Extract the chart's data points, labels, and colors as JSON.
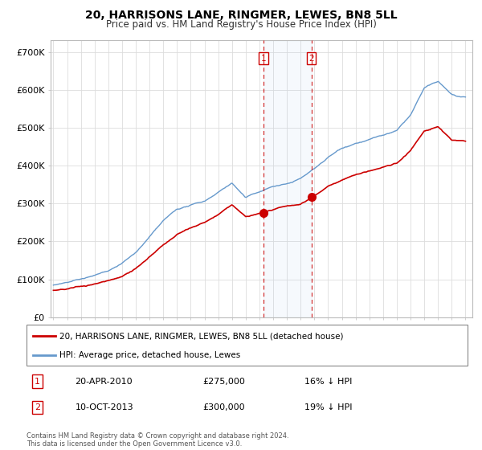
{
  "title": "20, HARRISONS LANE, RINGMER, LEWES, BN8 5LL",
  "subtitle": "Price paid vs. HM Land Registry's House Price Index (HPI)",
  "ylim": [
    0,
    730000
  ],
  "sale1_date": "20-APR-2010",
  "sale1_price": 275000,
  "sale1_label": "16% ↓ HPI",
  "sale2_date": "10-OCT-2013",
  "sale2_price": 300000,
  "sale2_label": "19% ↓ HPI",
  "sale1_x": 2010.3,
  "sale2_x": 2013.78,
  "red_color": "#cc0000",
  "blue_color": "#6699cc",
  "grid_color": "#dddddd",
  "legend_label_red": "20, HARRISONS LANE, RINGMER, LEWES, BN8 5LL (detached house)",
  "legend_label_blue": "HPI: Average price, detached house, Lewes",
  "footer": "Contains HM Land Registry data © Crown copyright and database right 2024.\nThis data is licensed under the Open Government Licence v3.0.",
  "hpi_keypoints": [
    [
      1995,
      95000
    ],
    [
      1996,
      99000
    ],
    [
      1997,
      107000
    ],
    [
      1998,
      115000
    ],
    [
      1999,
      128000
    ],
    [
      2000,
      148000
    ],
    [
      2001,
      175000
    ],
    [
      2002,
      215000
    ],
    [
      2003,
      255000
    ],
    [
      2004,
      285000
    ],
    [
      2005,
      295000
    ],
    [
      2006,
      305000
    ],
    [
      2007,
      330000
    ],
    [
      2008,
      355000
    ],
    [
      2009,
      315000
    ],
    [
      2010,
      330000
    ],
    [
      2011,
      345000
    ],
    [
      2012,
      350000
    ],
    [
      2013,
      365000
    ],
    [
      2014,
      390000
    ],
    [
      2015,
      420000
    ],
    [
      2016,
      445000
    ],
    [
      2017,
      460000
    ],
    [
      2018,
      470000
    ],
    [
      2019,
      480000
    ],
    [
      2020,
      490000
    ],
    [
      2021,
      530000
    ],
    [
      2022,
      600000
    ],
    [
      2023,
      615000
    ],
    [
      2024,
      580000
    ],
    [
      2025,
      570000
    ]
  ],
  "price_keypoints": [
    [
      1995,
      73000
    ],
    [
      1996,
      77000
    ],
    [
      1997,
      83000
    ],
    [
      1998,
      90000
    ],
    [
      1999,
      100000
    ],
    [
      2000,
      112000
    ],
    [
      2001,
      135000
    ],
    [
      2002,
      165000
    ],
    [
      2003,
      195000
    ],
    [
      2004,
      220000
    ],
    [
      2005,
      237000
    ],
    [
      2006,
      250000
    ],
    [
      2007,
      270000
    ],
    [
      2008,
      295000
    ],
    [
      2009,
      262000
    ],
    [
      2010,
      270000
    ],
    [
      2011,
      278000
    ],
    [
      2012,
      290000
    ],
    [
      2013,
      295000
    ],
    [
      2014,
      320000
    ],
    [
      2015,
      345000
    ],
    [
      2016,
      362000
    ],
    [
      2017,
      375000
    ],
    [
      2018,
      385000
    ],
    [
      2019,
      395000
    ],
    [
      2020,
      405000
    ],
    [
      2021,
      440000
    ],
    [
      2022,
      490000
    ],
    [
      2023,
      500000
    ],
    [
      2024,
      465000
    ],
    [
      2025,
      460000
    ]
  ]
}
